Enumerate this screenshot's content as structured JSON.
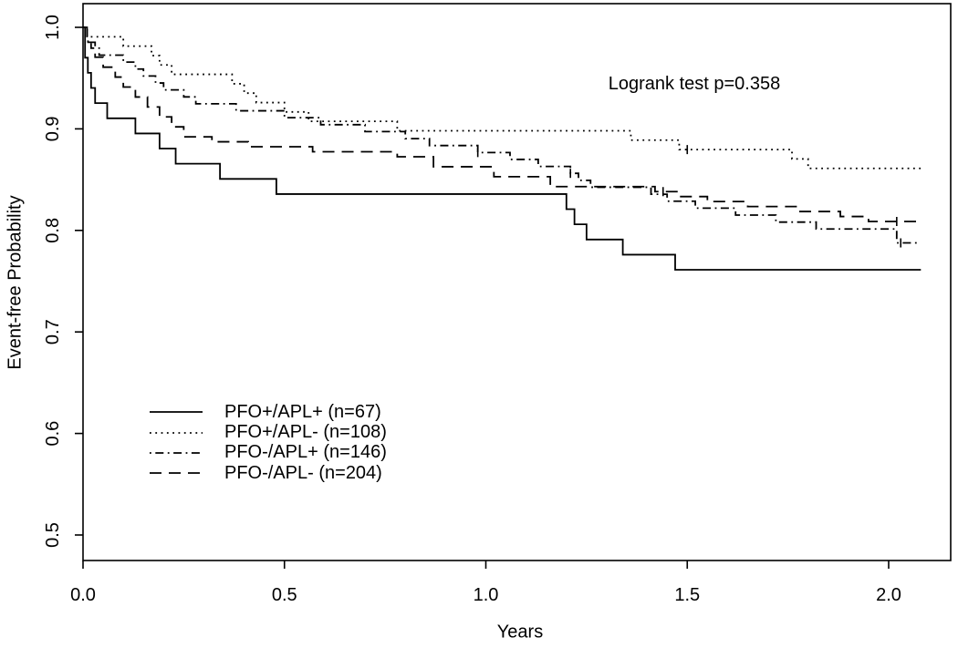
{
  "figure": {
    "background": "#ffffff",
    "line_color": "#000000"
  },
  "chart_data": {
    "type": "line",
    "subtype": "kaplan-meier-step",
    "title": "",
    "xlabel": "Years",
    "ylabel": "Event-free Probability",
    "xlim": [
      0,
      2.15
    ],
    "ylim": [
      0.5,
      1.0
    ],
    "grid": false,
    "legend_position": "inside-lower-left",
    "annotation": "Logrank test p=0.358",
    "x_ticks": [
      0.0,
      0.5,
      1.0,
      1.5,
      2.0
    ],
    "x_tick_labels": [
      "0.0",
      "0.5",
      "1.0",
      "1.5",
      "2.0"
    ],
    "y_ticks": [
      0.5,
      0.6,
      0.7,
      0.8,
      0.9,
      1.0
    ],
    "y_tick_labels": [
      "0.5",
      "0.6",
      "0.7",
      "0.8",
      "0.9",
      "1.0"
    ],
    "series": [
      {
        "name": "PFO+/APL+",
        "label": "PFO+/APL+ (n=67)",
        "n": 67,
        "slug": "curve-pfo-pos-apl-pos",
        "line": "solid",
        "dash": "",
        "color": "#000000",
        "end_t": 2.08,
        "steps": [
          [
            0,
            1.0
          ],
          [
            0.005,
            0.9701
          ],
          [
            0.012,
            0.9552
          ],
          [
            0.02,
            0.9403
          ],
          [
            0.03,
            0.9254
          ],
          [
            0.06,
            0.9104
          ],
          [
            0.13,
            0.8955
          ],
          [
            0.19,
            0.8806
          ],
          [
            0.23,
            0.8657
          ],
          [
            0.34,
            0.8507
          ],
          [
            0.48,
            0.8358
          ],
          [
            1.2,
            0.8209
          ],
          [
            1.22,
            0.806
          ],
          [
            1.25,
            0.791
          ],
          [
            1.34,
            0.7761
          ],
          [
            1.47,
            0.7612
          ]
        ],
        "censors": []
      },
      {
        "name": "PFO+/APL-",
        "label": "PFO+/APL- (n=108)",
        "n": 108,
        "slug": "curve-pfo-pos-apl-neg",
        "line": "dotted",
        "dash": "1.8 4.5",
        "color": "#000000",
        "end_t": 2.085,
        "steps": [
          [
            0,
            1.0
          ],
          [
            0.01,
            0.9907
          ],
          [
            0.1,
            0.9815
          ],
          [
            0.17,
            0.9722
          ],
          [
            0.19,
            0.963
          ],
          [
            0.22,
            0.9537
          ],
          [
            0.37,
            0.9444
          ],
          [
            0.4,
            0.9352
          ],
          [
            0.43,
            0.9259
          ],
          [
            0.5,
            0.9167
          ],
          [
            0.56,
            0.9074
          ],
          [
            0.78,
            0.8981
          ],
          [
            1.36,
            0.8889
          ],
          [
            1.48,
            0.8796
          ],
          [
            1.76,
            0.8704
          ],
          [
            1.8,
            0.8611
          ]
        ],
        "censors": [
          [
            1.5,
            0.8796
          ]
        ]
      },
      {
        "name": "PFO-/APL+",
        "label": "PFO-/APL+ (n=146)",
        "n": 146,
        "slug": "curve-pfo-neg-apl-pos",
        "line": "dashdot",
        "dash": "1.8 4.5 9 4.5",
        "color": "#000000",
        "end_t": 2.077,
        "steps": [
          [
            0,
            1.0
          ],
          [
            0.01,
            0.9863
          ],
          [
            0.02,
            0.9795
          ],
          [
            0.04,
            0.9726
          ],
          [
            0.1,
            0.9658
          ],
          [
            0.13,
            0.9589
          ],
          [
            0.15,
            0.9521
          ],
          [
            0.18,
            0.9452
          ],
          [
            0.2,
            0.9384
          ],
          [
            0.25,
            0.9315
          ],
          [
            0.28,
            0.9247
          ],
          [
            0.38,
            0.9178
          ],
          [
            0.5,
            0.911
          ],
          [
            0.59,
            0.9041
          ],
          [
            0.7,
            0.8973
          ],
          [
            0.8,
            0.8904
          ],
          [
            0.86,
            0.8836
          ],
          [
            0.98,
            0.8767
          ],
          [
            1.06,
            0.8699
          ],
          [
            1.13,
            0.863
          ],
          [
            1.21,
            0.8562
          ],
          [
            1.23,
            0.8493
          ],
          [
            1.26,
            0.8425
          ],
          [
            1.41,
            0.8356
          ],
          [
            1.45,
            0.8288
          ],
          [
            1.52,
            0.8219
          ],
          [
            1.62,
            0.8151
          ],
          [
            1.72,
            0.8082
          ],
          [
            1.82,
            0.8014
          ],
          [
            2.02,
            0.7877
          ]
        ],
        "censors": [
          [
            0.98,
            0.8767
          ],
          [
            1.21,
            0.8562
          ],
          [
            2.03,
            0.7877
          ]
        ]
      },
      {
        "name": "PFO-/APL-",
        "label": "PFO-/APL- (n=204)",
        "n": 204,
        "slug": "curve-pfo-neg-apl-neg",
        "line": "longdash",
        "dash": "13 8",
        "color": "#000000",
        "end_t": 2.085,
        "steps": [
          [
            0,
            1.0
          ],
          [
            0.01,
            0.9853
          ],
          [
            0.03,
            0.9706
          ],
          [
            0.05,
            0.9608
          ],
          [
            0.08,
            0.951
          ],
          [
            0.1,
            0.9412
          ],
          [
            0.13,
            0.9314
          ],
          [
            0.16,
            0.9216
          ],
          [
            0.19,
            0.9118
          ],
          [
            0.22,
            0.902
          ],
          [
            0.25,
            0.8922
          ],
          [
            0.32,
            0.8873
          ],
          [
            0.41,
            0.8824
          ],
          [
            0.57,
            0.8775
          ],
          [
            0.78,
            0.8725
          ],
          [
            0.87,
            0.8627
          ],
          [
            1.02,
            0.8529
          ],
          [
            1.16,
            0.8431
          ],
          [
            1.42,
            0.8382
          ],
          [
            1.48,
            0.8333
          ],
          [
            1.55,
            0.8284
          ],
          [
            1.65,
            0.8235
          ],
          [
            1.78,
            0.8186
          ],
          [
            1.88,
            0.8137
          ],
          [
            1.95,
            0.8088
          ]
        ],
        "censors": [
          [
            1.44,
            0.8382
          ],
          [
            2.02,
            0.8088
          ]
        ]
      }
    ]
  }
}
